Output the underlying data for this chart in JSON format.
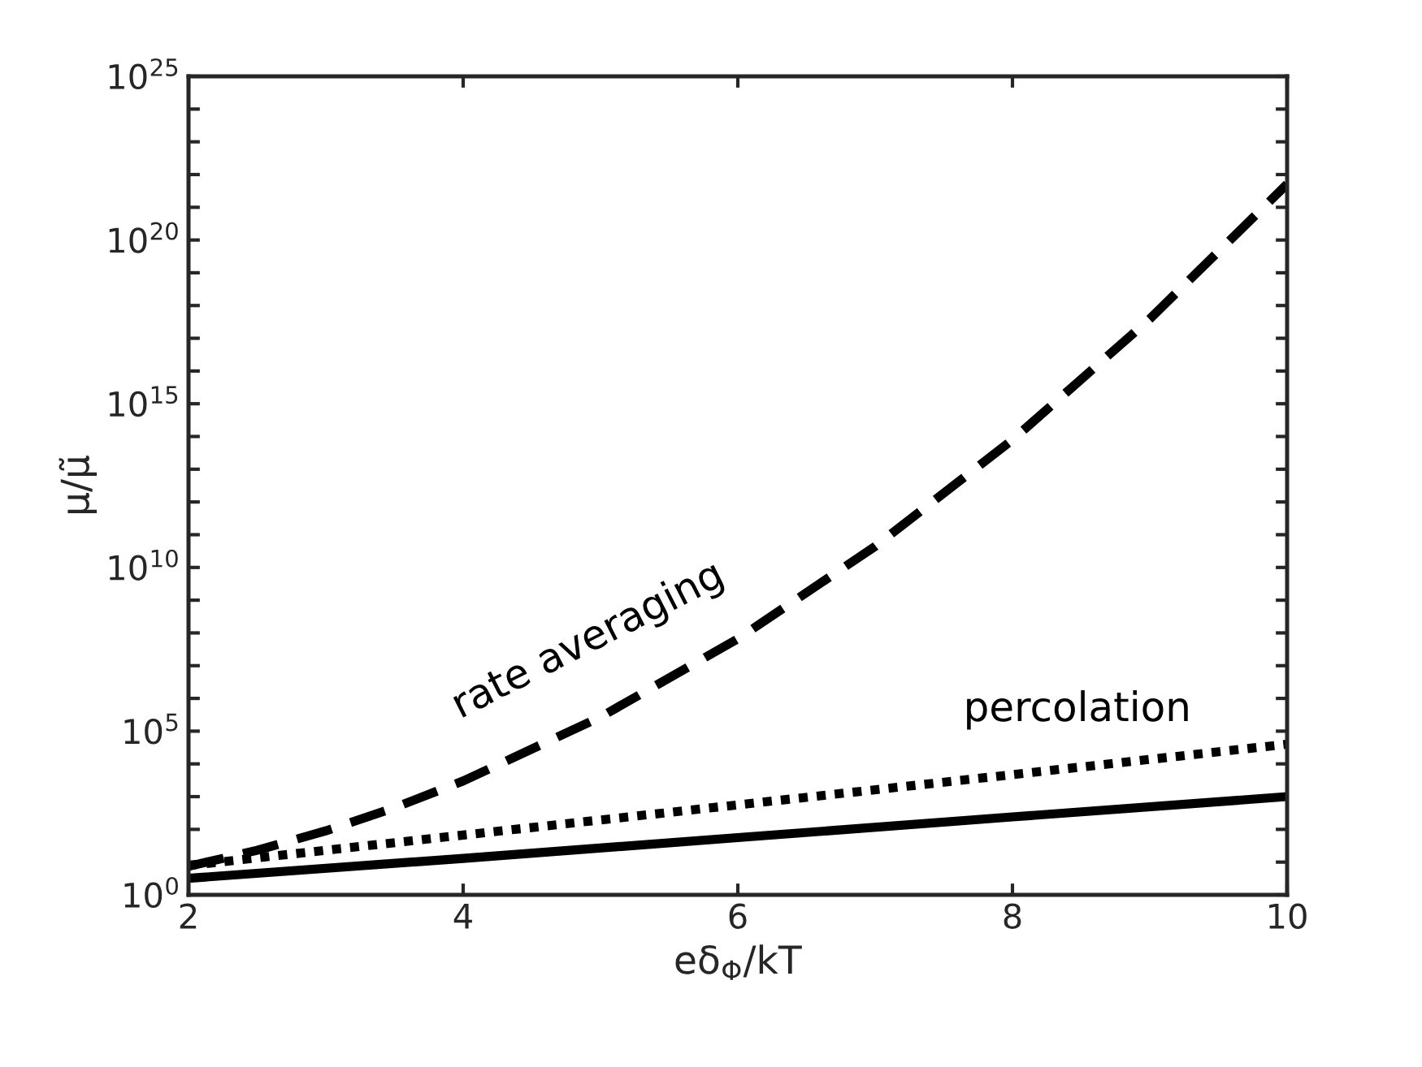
{
  "chart_data": {
    "type": "line",
    "xlabel": "eδ$_{Φ}$/kT",
    "ylabel": "μ/μ̃",
    "log": "y",
    "x": [
      2,
      2.5,
      3,
      3.5,
      4,
      5,
      6,
      7,
      8,
      9,
      10
    ],
    "series": [
      {
        "color": "#000000",
        "line_style": "dashed",
        "values": [
          7.4,
          23,
          90,
          460,
          3000,
          270000,
          66000000,
          44000000000,
          79000000000000,
          390000000000000000,
          5.1e+21
        ]
      },
      {
        "color": "#000000",
        "line_style": "dotted",
        "x": [
          2,
          4,
          6,
          8,
          10
        ],
        "values": [
          7.9,
          67,
          560,
          4700,
          40000
        ]
      },
      {
        "color": "#000000",
        "line_style": "solid",
        "x": [
          2,
          4,
          6,
          8,
          10
        ],
        "values": [
          3.2,
          13,
          56,
          240,
          1000
        ]
      }
    ],
    "xlim": [
      2,
      10
    ],
    "xticks": [
      2,
      4,
      6,
      8,
      10
    ],
    "ylim": [
      1,
      1e+25
    ],
    "yticks": [
      {
        "value": 1,
        "label": "10$^{0}$"
      },
      {
        "value": 10,
        "label": null
      },
      {
        "value": 100,
        "label": null
      },
      {
        "value": 1000,
        "label": null
      },
      {
        "value": 10000,
        "label": null
      },
      {
        "value": 100000,
        "label": "10$^{5}$"
      },
      {
        "value": 1000000.0,
        "label": null
      },
      {
        "value": 10000000.0,
        "label": null
      },
      {
        "value": 100000000.0,
        "label": null
      },
      {
        "value": 1000000000.0,
        "label": null
      },
      {
        "value": 10000000000.0,
        "label": "10$^{10}$"
      },
      {
        "value": 100000000000.0,
        "label": null
      },
      {
        "value": 1000000000000.0,
        "label": null
      },
      {
        "value": 10000000000000.0,
        "label": null
      },
      {
        "value": 100000000000000.0,
        "label": null
      },
      {
        "value": 1000000000000000.0,
        "label": "10$^{15}$"
      },
      {
        "value": 1e+16,
        "label": null
      },
      {
        "value": 1e+17,
        "label": null
      },
      {
        "value": 1e+18,
        "label": null
      },
      {
        "value": 1e+19,
        "label": null
      },
      {
        "value": 1e+20,
        "label": "10$^{20}$"
      },
      {
        "value": 1e+21,
        "label": null
      },
      {
        "value": 1e+22,
        "label": null
      },
      {
        "value": 1e+23,
        "label": null
      },
      {
        "value": 1e+24,
        "label": null
      },
      {
        "value": 1e+25,
        "label": "10$^{25}$"
      }
    ],
    "annotations": [
      "rate averaging",
      "percolation"
    ],
    "grid": false,
    "legend": false
  }
}
